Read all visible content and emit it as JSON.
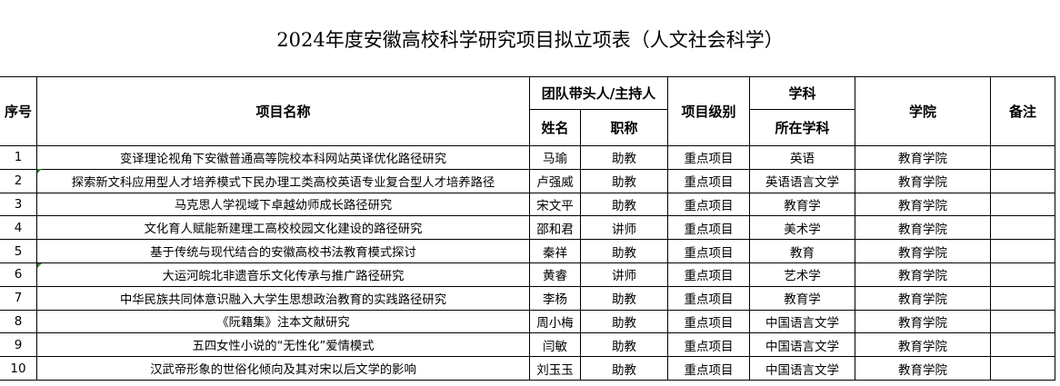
{
  "title": "2024年度安徽高校科学研究项目拟立项表（人文社会科学）",
  "headers": {
    "index": "序号",
    "project": "项目名称",
    "leader_group": "团队带头人/主持人",
    "name": "姓名",
    "rank": "职称",
    "level": "项目级别",
    "subject_group": "学科",
    "subject": "所在学科",
    "college": "学院",
    "remarks": "备注"
  },
  "rows": [
    {
      "no": "1",
      "project": "变译理论视角下安徽普通高等院校本科网站英译优化路径研究",
      "name": "马瑜",
      "rank": "助教",
      "level": "重点项目",
      "subject": "英语",
      "college": "教育学院",
      "remarks": ""
    },
    {
      "no": "2",
      "project": "探索新文科应用型人才培养模式下民办理工类高校英语专业复合型人才培养路径",
      "name": "卢强威",
      "rank": "助教",
      "level": "重点项目",
      "subject": "英语语言文学",
      "college": "教育学院",
      "remarks": ""
    },
    {
      "no": "3",
      "project": "马克思人学视域下卓越幼师成长路径研究",
      "name": "宋文平",
      "rank": "助教",
      "level": "重点项目",
      "subject": "教育学",
      "college": "教育学院",
      "remarks": ""
    },
    {
      "no": "4",
      "project": "文化育人赋能新建理工高校校园文化建设的路径研究",
      "name": "邵和君",
      "rank": "讲师",
      "level": "重点项目",
      "subject": "美术学",
      "college": "教育学院",
      "remarks": ""
    },
    {
      "no": "5",
      "project": "基于传统与现代结合的安徽高校书法教育模式探讨",
      "name": "秦祥",
      "rank": "助教",
      "level": "重点项目",
      "subject": "教育",
      "college": "教育学院",
      "remarks": ""
    },
    {
      "no": "6",
      "project": "大运河皖北非遗音乐文化传承与推广路径研究",
      "name": "黄睿",
      "rank": "讲师",
      "level": "重点项目",
      "subject": "艺术学",
      "college": "教育学院",
      "remarks": ""
    },
    {
      "no": "7",
      "project": "中华民族共同体意识融入大学生思想政治教育的实践路径研究",
      "name": "李杨",
      "rank": "助教",
      "level": "重点项目",
      "subject": "教育学",
      "college": "教育学院",
      "remarks": ""
    },
    {
      "no": "8",
      "project": "《阮籍集》注本文献研究",
      "name": "周小梅",
      "rank": "助教",
      "level": "重点项目",
      "subject": "中国语言文学",
      "college": "教育学院",
      "remarks": ""
    },
    {
      "no": "9",
      "project": "五四女性小说的“无性化”爱情模式",
      "name": "闫敏",
      "rank": "助教",
      "level": "重点项目",
      "subject": "中国语言文学",
      "college": "教育学院",
      "remarks": ""
    },
    {
      "no": "10",
      "project": "汉武帝形象的世俗化倾向及其对宋以后文学的影响",
      "name": "刘玉玉",
      "rank": "助教",
      "level": "重点项目",
      "subject": "中国语言文学",
      "college": "教育学院",
      "remarks": ""
    }
  ]
}
